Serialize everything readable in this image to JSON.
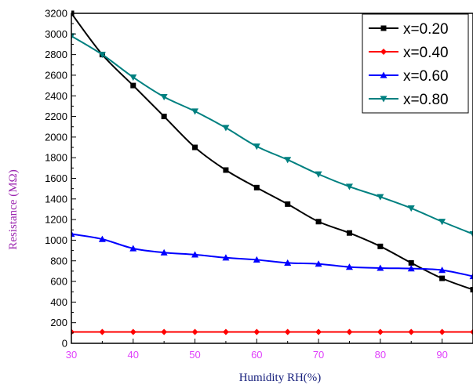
{
  "colors": {
    "x_ticks": "#e040fb",
    "y_ticks": "#000000",
    "xlabel": "#1a237e",
    "ylabel": "#9c27b0",
    "axis": "#000000"
  },
  "chart_data": {
    "type": "line",
    "title": "",
    "xlabel": "Humidity RH(%)",
    "ylabel": "Resistance (MΩ)",
    "xlim": [
      30,
      95
    ],
    "ylim": [
      0,
      3200
    ],
    "x_ticks": [
      30,
      40,
      50,
      60,
      70,
      80,
      90
    ],
    "y_ticks": [
      0,
      200,
      400,
      600,
      800,
      1000,
      1200,
      1400,
      1600,
      1800,
      2000,
      2200,
      2400,
      2600,
      2800,
      3000,
      3200
    ],
    "grid": false,
    "legend_position": "top-right",
    "x": [
      30,
      35,
      40,
      45,
      50,
      55,
      60,
      65,
      70,
      75,
      80,
      85,
      90,
      95
    ],
    "series": [
      {
        "name": "x=0.20",
        "color": "#000000",
        "marker": "square",
        "values": [
          3200,
          2800,
          2500,
          2200,
          1900,
          1680,
          1510,
          1350,
          1180,
          1070,
          940,
          780,
          630,
          520
        ]
      },
      {
        "name": "x=0.40",
        "color": "#ff0000",
        "marker": "diamond",
        "values": [
          110,
          110,
          110,
          110,
          110,
          110,
          110,
          110,
          110,
          110,
          110,
          110,
          110,
          110
        ]
      },
      {
        "name": "x=0.60",
        "color": "#0000ff",
        "marker": "triangle-up",
        "values": [
          1060,
          1010,
          920,
          880,
          860,
          830,
          810,
          780,
          770,
          740,
          730,
          725,
          710,
          650
        ]
      },
      {
        "name": "x=0.80",
        "color": "#008080",
        "marker": "triangle-down",
        "values": [
          2980,
          2800,
          2580,
          2390,
          2250,
          2090,
          1910,
          1780,
          1640,
          1520,
          1420,
          1310,
          1180,
          1060
        ]
      }
    ]
  }
}
